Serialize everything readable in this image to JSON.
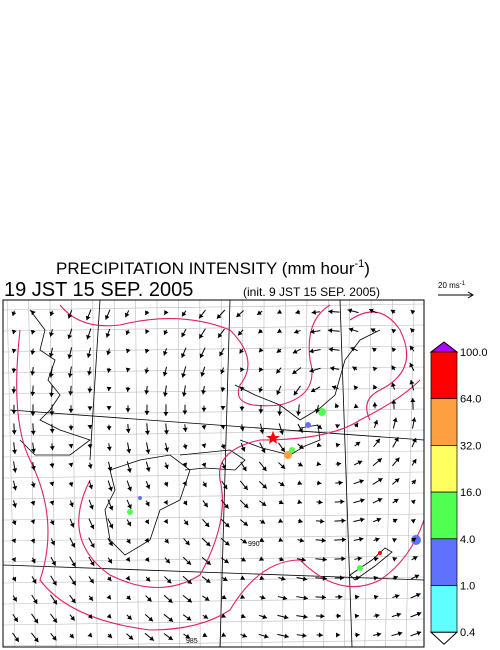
{
  "header": {
    "title": "PRECIPITATION INTENSITY (mm hour",
    "title_exponent": "-1",
    "title_close": ")",
    "valid_time": "19 JST 15 SEP. 2005",
    "init_time": "(init. 9 JST 15 SEP. 2005)"
  },
  "vector_scale": {
    "label": "20 ms",
    "exponent": "-1"
  },
  "colorbar": {
    "labels": [
      "100.0",
      "64.0",
      "32.0",
      "16.0",
      "4.0",
      "1.0",
      "0.4"
    ],
    "colors": [
      "#b000ff",
      "#ff0000",
      "#ffa040",
      "#ffff60",
      "#50ff50",
      "#6070ff",
      "#60ffff",
      "#ffffff"
    ]
  },
  "contour_labels": [
    "985",
    "990"
  ]
}
